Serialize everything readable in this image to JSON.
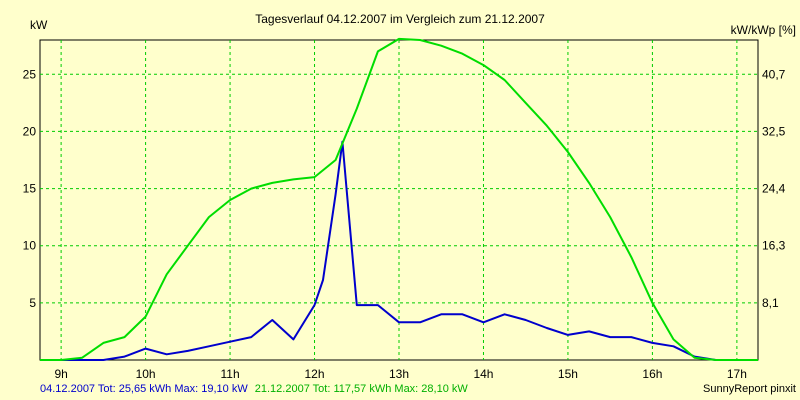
{
  "chart_data": {
    "type": "line",
    "title": "Tagesverlauf 04.12.2007 im Vergleich zum 21.12.2007",
    "ylabel_left": "kW",
    "ylabel_right": "kW/kWp [%]",
    "x_ticks": [
      "9h",
      "10h",
      "11h",
      "12h",
      "13h",
      "14h",
      "15h",
      "16h",
      "17h"
    ],
    "x_tick_values": [
      9,
      10,
      11,
      12,
      13,
      14,
      15,
      16,
      17
    ],
    "xlim": [
      8.75,
      17.25
    ],
    "y_ticks": [
      "5",
      "10",
      "15",
      "20",
      "25"
    ],
    "y_tick_values": [
      5,
      10,
      15,
      20,
      25
    ],
    "y2_ticks": [
      "8,1",
      "16,3",
      "24,4",
      "32,5",
      "40,7"
    ],
    "ylim": [
      0,
      28
    ],
    "grid": true,
    "series": [
      {
        "name": "04.12.2007",
        "color": "#0000cc",
        "x": [
          8.75,
          9.0,
          9.25,
          9.5,
          9.75,
          10.0,
          10.25,
          10.5,
          10.75,
          11.0,
          11.25,
          11.5,
          11.75,
          12.0,
          12.1,
          12.25,
          12.33,
          12.5,
          12.75,
          13.0,
          13.25,
          13.5,
          13.75,
          14.0,
          14.25,
          14.5,
          14.75,
          15.0,
          15.25,
          15.5,
          15.75,
          16.0,
          16.25,
          16.5,
          16.75,
          17.0,
          17.25
        ],
        "values": [
          0,
          0,
          0,
          0,
          0.3,
          1.0,
          0.5,
          0.8,
          1.2,
          1.6,
          2.0,
          3.5,
          1.8,
          4.8,
          7.0,
          14.5,
          19.1,
          4.8,
          4.8,
          3.3,
          3.3,
          4.0,
          4.0,
          3.3,
          4.0,
          3.5,
          2.8,
          2.2,
          2.5,
          2.0,
          2.0,
          1.5,
          1.2,
          0.3,
          0,
          0,
          0
        ]
      },
      {
        "name": "21.12.2007",
        "color": "#00dd00",
        "x": [
          8.75,
          9.0,
          9.25,
          9.5,
          9.75,
          10.0,
          10.25,
          10.5,
          10.75,
          11.0,
          11.25,
          11.5,
          11.75,
          12.0,
          12.25,
          12.5,
          12.75,
          13.0,
          13.25,
          13.5,
          13.75,
          14.0,
          14.25,
          14.5,
          14.75,
          15.0,
          15.25,
          15.5,
          15.75,
          16.0,
          16.25,
          16.5,
          16.75,
          17.0,
          17.25
        ],
        "values": [
          0,
          0,
          0.2,
          1.5,
          2.0,
          3.8,
          7.5,
          10.0,
          12.5,
          14.0,
          15.0,
          15.5,
          15.8,
          16.0,
          17.5,
          22.0,
          27.0,
          28.1,
          28.0,
          27.5,
          26.8,
          25.8,
          24.5,
          22.5,
          20.5,
          18.2,
          15.5,
          12.5,
          9.0,
          5.0,
          1.8,
          0.2,
          0,
          0,
          0
        ]
      }
    ]
  },
  "footer": {
    "legend1": "04.12.2007 Tot: 25,65 kWh Max: 19,10 kW",
    "legend2": "21.12.2007 Tot: 117,57 kWh Max: 28,10 kW",
    "credit": "SunnyReport pinxit"
  },
  "colors": {
    "background": "#ffffcc",
    "plot_background": "#ffffcc",
    "grid": "#00cc00",
    "series1": "#0000cc",
    "series2": "#00dd00"
  }
}
